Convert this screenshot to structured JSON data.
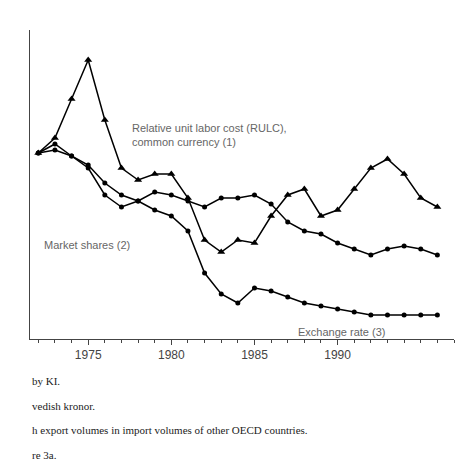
{
  "chart_data": {
    "type": "line",
    "x": [
      1972,
      1973,
      1974,
      1975,
      1976,
      1977,
      1978,
      1979,
      1980,
      1981,
      1982,
      1983,
      1984,
      1985,
      1986,
      1987,
      1988,
      1989,
      1990,
      1991,
      1992,
      1993,
      1994,
      1995,
      1996
    ],
    "series": [
      {
        "color": "#000000",
        "marker": "triangle-up",
        "values": [
          77,
          82,
          95,
          108,
          88,
          72,
          68,
          70,
          70,
          62,
          48,
          44,
          48,
          47,
          56,
          63,
          65,
          56,
          58,
          65,
          72,
          75,
          70,
          62,
          59
        ]
      },
      {
        "color": "#000000",
        "marker": "circle",
        "values": [
          77,
          80,
          76,
          72,
          63,
          59,
          61,
          64,
          63,
          61,
          59,
          62,
          62,
          63,
          60,
          54,
          51,
          50,
          47,
          45,
          43,
          45,
          46,
          45,
          43
        ]
      },
      {
        "color": "#000000",
        "marker": "circle",
        "values": [
          77,
          78,
          76,
          73,
          67,
          63,
          61,
          58,
          56,
          51,
          37,
          30,
          27,
          32,
          31,
          29,
          27,
          26,
          25,
          24,
          23,
          23,
          23,
          23,
          23
        ]
      }
    ],
    "annotations": [
      {
        "text": "Relative unit labor cost (RULC),\ncommon currency (1)",
        "x": 1977.5,
        "y": 88,
        "color": "#666666"
      },
      {
        "text": "Market shares (2)",
        "x": 1972.2,
        "y": 49,
        "color": "#666666"
      },
      {
        "text": "Exchange rate (3)",
        "x": 1987.5,
        "y": 20,
        "color": "#666666"
      }
    ],
    "footnotes": [
      "by KI.",
      "vedish kronor.",
      "h export volumes in import volumes of other OECD countries.",
      "re 3a."
    ],
    "xlim": [
      1971.5,
      1997
    ],
    "xticks": [
      1975,
      1980,
      1985,
      1990
    ],
    "ylim": [
      15,
      118
    ],
    "grid": false,
    "tick_labels": "x"
  }
}
